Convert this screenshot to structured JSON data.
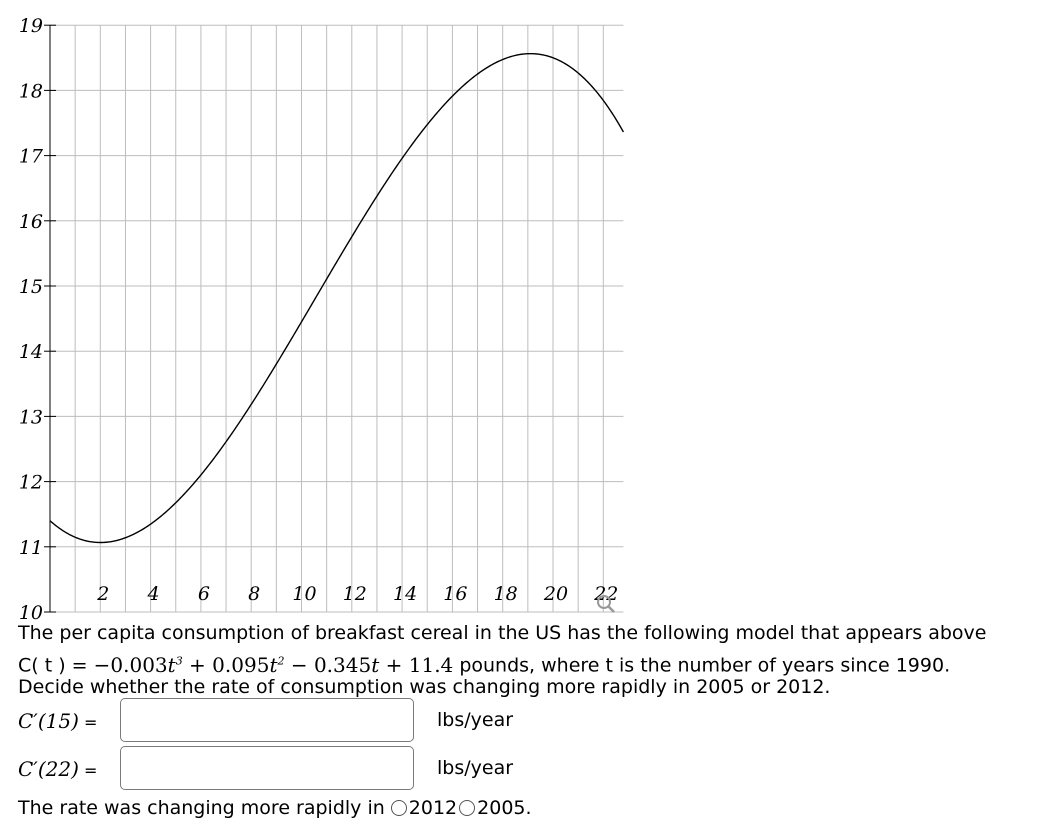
{
  "chart_data": {
    "type": "line",
    "function": "C(t) = -0.003t^3 + 0.095t^2 - 0.345t + 11.4",
    "coefficients": [
      -0.003,
      0.095,
      -0.345,
      11.4
    ],
    "xlim": [
      0,
      22.8
    ],
    "ylim": [
      10,
      19
    ],
    "x_ticks": [
      2,
      4,
      6,
      8,
      10,
      12,
      14,
      16,
      18,
      20,
      22
    ],
    "y_ticks": [
      10,
      11,
      12,
      13,
      14,
      15,
      16,
      17,
      18,
      19
    ],
    "x_grid_step": 1,
    "y_grid_step": 1,
    "grid": true
  },
  "problem": {
    "intro": "The per capita consumption of breakfast cereal in the US has the following model that appears above",
    "model_prefix": "C( t ) = ",
    "model_terms": {
      "neg": "−",
      "t1": "0.003",
      "t2": " + 0.095",
      "t3": " − 0.345",
      "t4": " + 11.4",
      "var": "t",
      "p3": "3",
      "p2": "2"
    },
    "model_suffix": " pounds, where t is the number of years since 1990.",
    "instruction": "Decide whether the rate of consumption was changing more rapidly in 2005 or 2012.",
    "q1_label": "C′(15)",
    "q2_label": "C′(22)",
    "equals": " =",
    "unit": "lbs/year",
    "q1_value": "",
    "q2_value": "",
    "choice_prompt": "The rate was changing more rapidly in",
    "options": [
      "2012",
      "2005."
    ]
  },
  "icons": {
    "zoom": "magnifier-icon"
  }
}
